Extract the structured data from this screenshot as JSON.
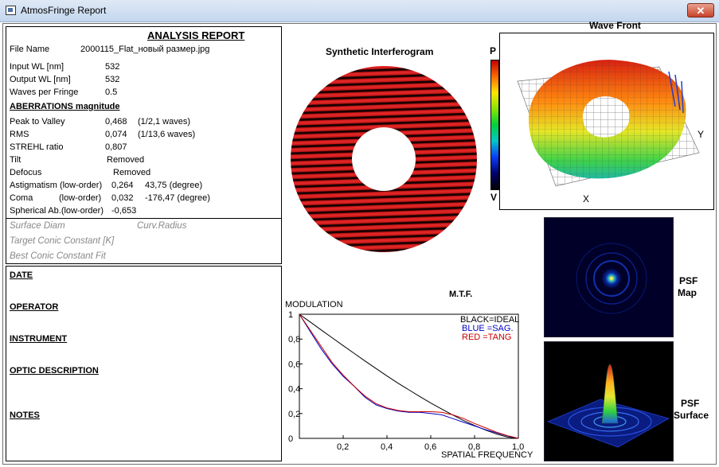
{
  "window": {
    "title": "AtmosFringe  Report",
    "close": "✕"
  },
  "report": {
    "title": "ANALYSIS  REPORT",
    "file_label": "File Name",
    "file_value": "2000115_Flat_новый размер.jpg",
    "input_wl_label": "Input  WL [nm]",
    "input_wl_value": "532",
    "output_wl_label": "Output WL [nm]",
    "output_wl_value": "532",
    "wpf_label": "Waves per Fringe",
    "wpf_value": "0.5",
    "aberr_header": "ABERRATIONS magnitude",
    "ptv_label": "Peak to Valley",
    "ptv_value": "0,468",
    "ptv_waves": "(1/2,1 waves)",
    "rms_label": "RMS",
    "rms_value": "0,074",
    "rms_waves": "(1/13,6 waves)",
    "strehl_label": "STREHL ratio",
    "strehl_value": "0,807",
    "tilt_label": "Tilt",
    "tilt_value": "Removed",
    "defocus_label": "Defocus",
    "defocus_value": "Removed",
    "astig_label": "Astigmatism  (low-order)",
    "astig_value": "0,264",
    "astig_angle": "43,75  (degree)",
    "coma_label": "Coma",
    "coma_order": "(low-order)",
    "coma_value": "0,032",
    "coma_angle": "-176,47  (degree)",
    "spher_label": "Spherical Ab.(low-order)",
    "spher_value": "-0,653",
    "surface_diam": "Surface Diam",
    "curv_radius": "Curv.Radius",
    "target_conic": "Target Conic Constant [K]",
    "best_conic": "Best Conic Constant Fit"
  },
  "info": {
    "date": "DATE",
    "operator": "OPERATOR",
    "instrument": "INSTRUMENT",
    "optic": "OPTIC DESCRIPTION",
    "notes": "NOTES"
  },
  "interferogram": {
    "title": "Synthetic Interferogram"
  },
  "colorbar": {
    "top": "P",
    "bottom": "V"
  },
  "wavefront": {
    "title": "Wave Front",
    "x_label": "X",
    "y_label": "Y"
  },
  "psf": {
    "map_label_1": "PSF",
    "map_label_2": "Map",
    "surface_label_1": "PSF",
    "surface_label_2": "Surface"
  },
  "mtf": {
    "title": "M.T.F.",
    "ylabel": "MODULATION",
    "xlabel": "SPATIAL FREQUENCY",
    "legend": {
      "ideal": "BLACK=IDEAL",
      "sag": "BLUE  =SAG.",
      "tang": "RED    =TANG"
    },
    "colors": {
      "ideal": "#000000",
      "sag": "#0000c8",
      "tang": "#c80000"
    }
  },
  "chart_data": {
    "type": "line",
    "title": "M.T.F.",
    "xlabel": "SPATIAL FREQUENCY",
    "ylabel": "MODULATION",
    "xlim": [
      0,
      1
    ],
    "ylim": [
      0,
      1
    ],
    "x_ticks": [
      "0,2",
      "0,4",
      "0,6",
      "0,8",
      "1,0"
    ],
    "y_ticks": [
      "0",
      "0,2",
      "0,4",
      "0,6",
      "0,8",
      "1"
    ],
    "x": [
      0,
      0.05,
      0.1,
      0.15,
      0.2,
      0.25,
      0.3,
      0.35,
      0.4,
      0.45,
      0.5,
      0.55,
      0.6,
      0.65,
      0.7,
      0.75,
      0.8,
      0.85,
      0.9,
      0.95,
      1.0
    ],
    "series": [
      {
        "name": "BLACK=IDEAL",
        "values": [
          1.0,
          0.937,
          0.873,
          0.81,
          0.747,
          0.685,
          0.623,
          0.563,
          0.503,
          0.445,
          0.391,
          0.337,
          0.285,
          0.236,
          0.189,
          0.144,
          0.104,
          0.067,
          0.035,
          0.011,
          0.0
        ]
      },
      {
        "name": "BLUE  =SAG.",
        "values": [
          1.0,
          0.86,
          0.72,
          0.6,
          0.5,
          0.42,
          0.33,
          0.27,
          0.24,
          0.22,
          0.21,
          0.21,
          0.2,
          0.19,
          0.16,
          0.13,
          0.1,
          0.07,
          0.045,
          0.02,
          0.0
        ]
      },
      {
        "name": "RED    =TANG",
        "values": [
          1.0,
          0.87,
          0.74,
          0.61,
          0.51,
          0.42,
          0.34,
          0.28,
          0.245,
          0.225,
          0.215,
          0.215,
          0.215,
          0.21,
          0.19,
          0.16,
          0.12,
          0.085,
          0.05,
          0.022,
          0.0
        ]
      }
    ]
  }
}
